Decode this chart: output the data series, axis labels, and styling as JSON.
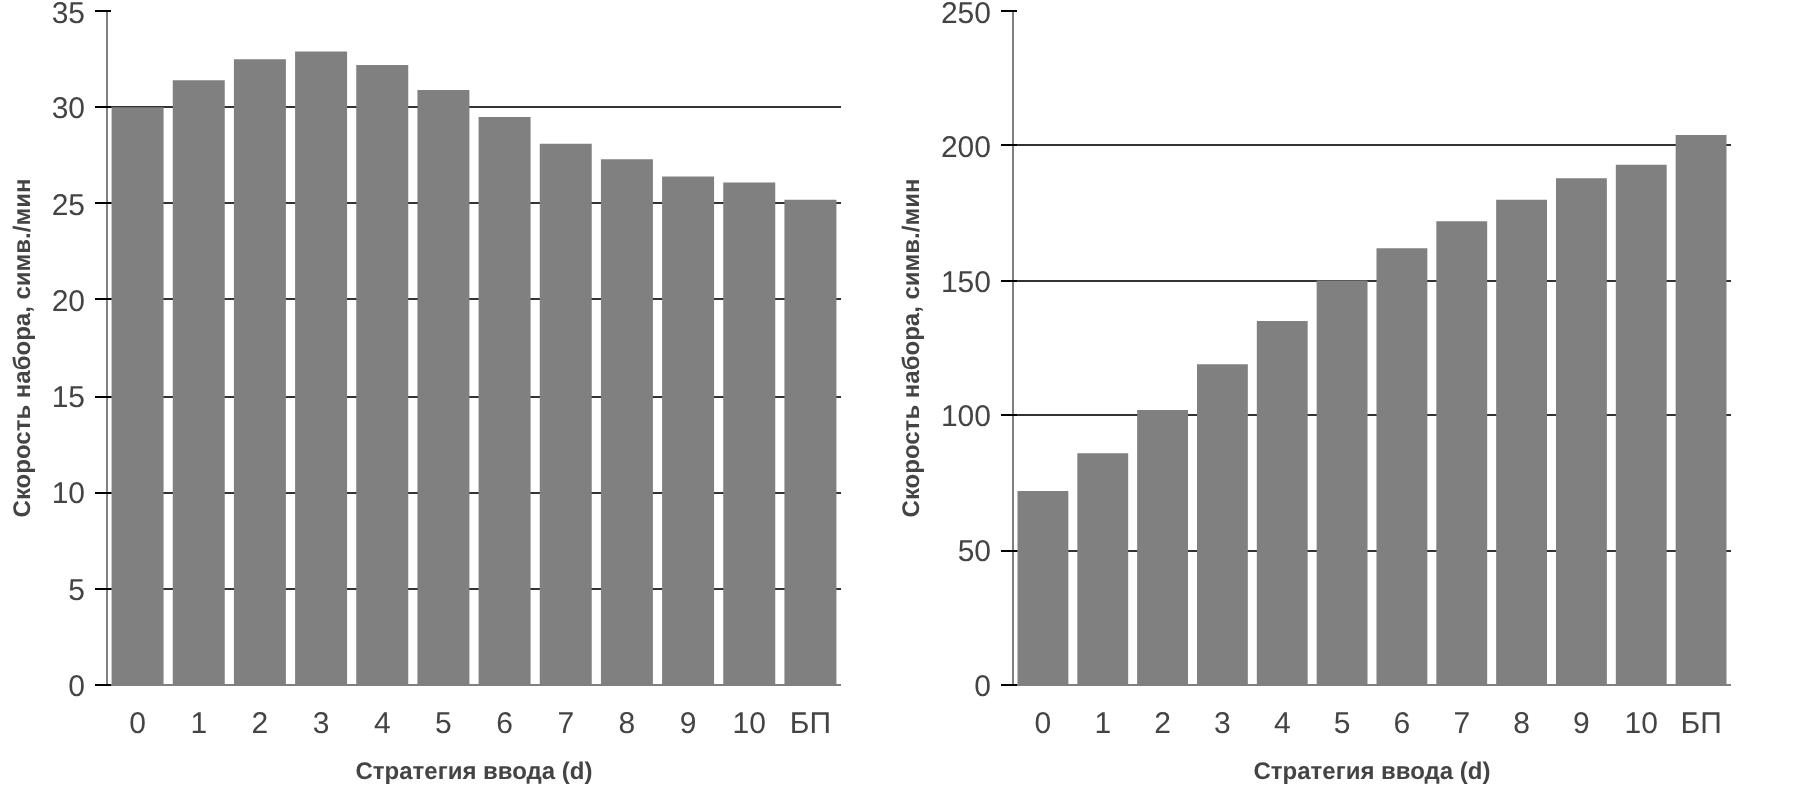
{
  "chart_data": [
    {
      "type": "bar",
      "categories": [
        "0",
        "1",
        "2",
        "3",
        "4",
        "5",
        "6",
        "7",
        "8",
        "9",
        "10",
        "БП"
      ],
      "values": [
        30,
        31.4,
        32.5,
        32.9,
        32.2,
        30.9,
        29.5,
        28.1,
        27.3,
        26.4,
        26.1,
        25.2
      ],
      "color": "#808080",
      "xlabel": "Стратегия ввода (d)",
      "ylabel": "Скорость набора, симв./мин",
      "ylim": [
        0,
        35
      ],
      "yticks": [
        0,
        5,
        10,
        15,
        20,
        25,
        30,
        35
      ],
      "grid": "y"
    },
    {
      "type": "bar",
      "categories": [
        "0",
        "1",
        "2",
        "3",
        "4",
        "5",
        "6",
        "7",
        "8",
        "9",
        "10",
        "БП"
      ],
      "values": [
        72,
        86,
        102,
        119,
        135,
        150,
        162,
        172,
        180,
        188,
        193,
        204
      ],
      "color": "#808080",
      "xlabel": "Стратегия ввода (d)",
      "ylabel": "Скорость набора, симв./мин",
      "ylim": [
        0,
        250
      ],
      "yticks": [
        0,
        50,
        100,
        150,
        200,
        250
      ],
      "grid": "y"
    }
  ]
}
